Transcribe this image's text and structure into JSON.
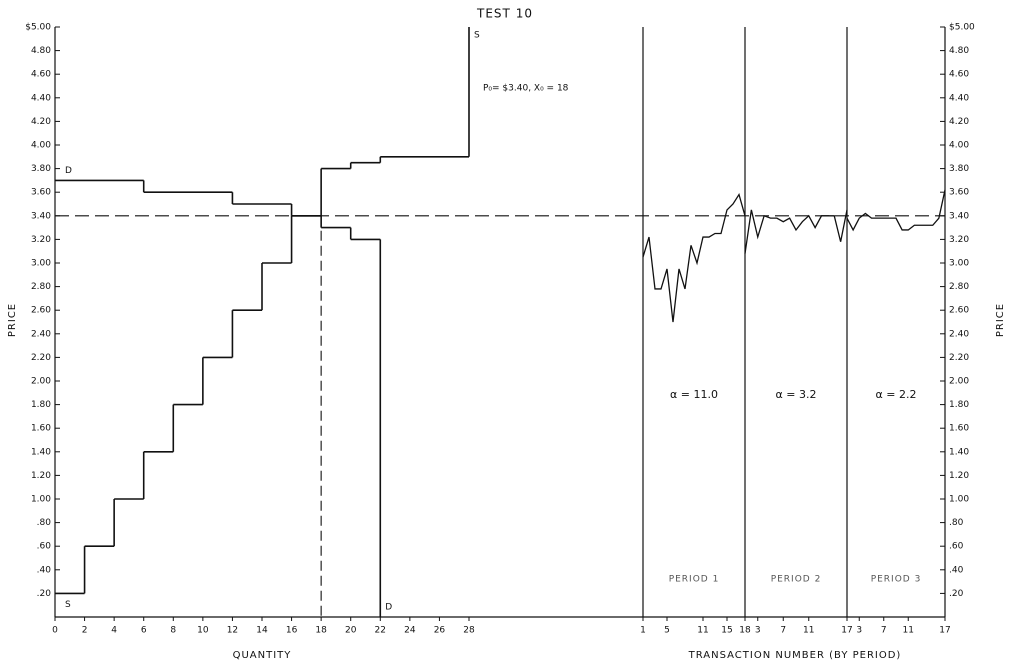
{
  "chart_data": [
    {
      "type": "step",
      "title": "TEST 10",
      "x_label": "QUANTITY",
      "y_label": "PRICE",
      "xlim": [
        0,
        28
      ],
      "xticks": [
        0,
        2,
        4,
        6,
        8,
        10,
        12,
        14,
        16,
        18,
        20,
        22,
        24,
        26,
        28
      ],
      "ylim": [
        0,
        5
      ],
      "yticks": [
        {
          "value": 0.2,
          "label": ".20"
        },
        {
          "value": 0.4,
          "label": ".40"
        },
        {
          "value": 0.6,
          "label": ".60"
        },
        {
          "value": 0.8,
          "label": ".80"
        },
        {
          "value": 1,
          "label": "1.00"
        },
        {
          "value": 1.2,
          "label": "1.20"
        },
        {
          "value": 1.4,
          "label": "1.40"
        },
        {
          "value": 1.6,
          "label": "1.60"
        },
        {
          "value": 1.8,
          "label": "1.80"
        },
        {
          "value": 2,
          "label": "2.00"
        },
        {
          "value": 2.2,
          "label": "2.20"
        },
        {
          "value": 2.4,
          "label": "2.40"
        },
        {
          "value": 2.6,
          "label": "2.60"
        },
        {
          "value": 2.8,
          "label": "2.80"
        },
        {
          "value": 3,
          "label": "3.00"
        },
        {
          "value": 3.2,
          "label": "3.20"
        },
        {
          "value": 3.4,
          "label": "3.40"
        },
        {
          "value": 3.6,
          "label": "3.60"
        },
        {
          "value": 3.8,
          "label": "3.80"
        },
        {
          "value": 4,
          "label": "4.00"
        },
        {
          "value": 4.2,
          "label": "4.20"
        },
        {
          "value": 4.4,
          "label": "4.40"
        },
        {
          "value": 4.6,
          "label": "4.60"
        },
        {
          "value": 4.8,
          "label": "4.80"
        },
        {
          "value": 5,
          "label": "$5.00"
        }
      ],
      "supply": {
        "name": "S",
        "x": [
          0,
          2,
          4,
          6,
          8,
          10,
          12,
          14,
          16,
          18,
          20,
          22,
          28
        ],
        "values": [
          0.2,
          0.6,
          1.0,
          1.4,
          1.8,
          2.2,
          2.6,
          3.0,
          3.4,
          3.8,
          3.85,
          3.9
        ]
      },
      "demand": {
        "name": "D",
        "x": [
          0,
          6,
          12,
          16,
          18,
          20,
          22
        ],
        "values": [
          3.7,
          3.6,
          3.5,
          3.4,
          3.3,
          3.2
        ]
      },
      "equilibrium": {
        "price": 3.4,
        "quantity": 18,
        "label": "P₀= $3.40,  X₀ = 18"
      }
    },
    {
      "type": "line",
      "x_label": "TRANSACTION NUMBER (BY PERIOD)",
      "y_label": "PRICE",
      "ylim": [
        0,
        5
      ],
      "yticks": [
        {
          "value": 0.2,
          "label": ".20"
        },
        {
          "value": 0.4,
          "label": ".40"
        },
        {
          "value": 0.6,
          "label": ".60"
        },
        {
          "value": 0.8,
          "label": ".80"
        },
        {
          "value": 1,
          "label": "1.00"
        },
        {
          "value": 1.2,
          "label": "1.20"
        },
        {
          "value": 1.4,
          "label": "1.40"
        },
        {
          "value": 1.6,
          "label": "1.60"
        },
        {
          "value": 1.8,
          "label": "1.80"
        },
        {
          "value": 2,
          "label": "2.00"
        },
        {
          "value": 2.2,
          "label": "2.20"
        },
        {
          "value": 2.4,
          "label": "2.40"
        },
        {
          "value": 2.6,
          "label": "2.60"
        },
        {
          "value": 2.8,
          "label": "2.80"
        },
        {
          "value": 3,
          "label": "3.00"
        },
        {
          "value": 3.2,
          "label": "3.20"
        },
        {
          "value": 3.4,
          "label": "3.40"
        },
        {
          "value": 3.6,
          "label": "3.60"
        },
        {
          "value": 3.8,
          "label": "3.80"
        },
        {
          "value": 4,
          "label": "4.00"
        },
        {
          "value": 4.2,
          "label": "4.20"
        },
        {
          "value": 4.4,
          "label": "4.40"
        },
        {
          "value": 4.6,
          "label": "4.60"
        },
        {
          "value": 4.8,
          "label": "4.80"
        },
        {
          "value": 5,
          "label": "$5.00"
        }
      ],
      "periods": [
        {
          "name": "PERIOD 1",
          "alpha": "α = 11.0",
          "xlim": [
            1,
            18
          ],
          "xticks": [
            1,
            5,
            11,
            15,
            18
          ],
          "x": [
            1,
            2,
            3,
            4,
            5,
            6,
            7,
            8,
            9,
            10,
            11,
            12,
            13,
            14,
            15,
            16,
            17,
            18
          ],
          "values": [
            3.05,
            3.22,
            2.78,
            2.78,
            2.95,
            2.5,
            2.95,
            2.78,
            3.15,
            3.0,
            3.22,
            3.22,
            3.25,
            3.25,
            3.45,
            3.5,
            3.58,
            3.4
          ]
        },
        {
          "name": "PERIOD 2",
          "alpha": "α = 3.2",
          "xlim": [
            1,
            17
          ],
          "xticks": [
            3,
            7,
            11,
            17
          ],
          "x": [
            1,
            2,
            3,
            4,
            5,
            6,
            7,
            8,
            9,
            10,
            11,
            12,
            13,
            14,
            15,
            16,
            17
          ],
          "values": [
            3.08,
            3.45,
            3.22,
            3.4,
            3.38,
            3.38,
            3.35,
            3.38,
            3.28,
            3.35,
            3.4,
            3.3,
            3.4,
            3.4,
            3.4,
            3.18,
            3.45
          ]
        },
        {
          "name": "PERIOD 3",
          "alpha": "α = 2.2",
          "xlim": [
            1,
            17
          ],
          "xticks": [
            3,
            7,
            11,
            17
          ],
          "x": [
            1,
            2,
            3,
            4,
            5,
            6,
            7,
            8,
            9,
            10,
            11,
            12,
            13,
            14,
            15,
            16,
            17
          ],
          "values": [
            3.38,
            3.28,
            3.38,
            3.42,
            3.38,
            3.38,
            3.38,
            3.38,
            3.38,
            3.28,
            3.28,
            3.32,
            3.32,
            3.32,
            3.32,
            3.38,
            3.62
          ]
        }
      ]
    }
  ]
}
